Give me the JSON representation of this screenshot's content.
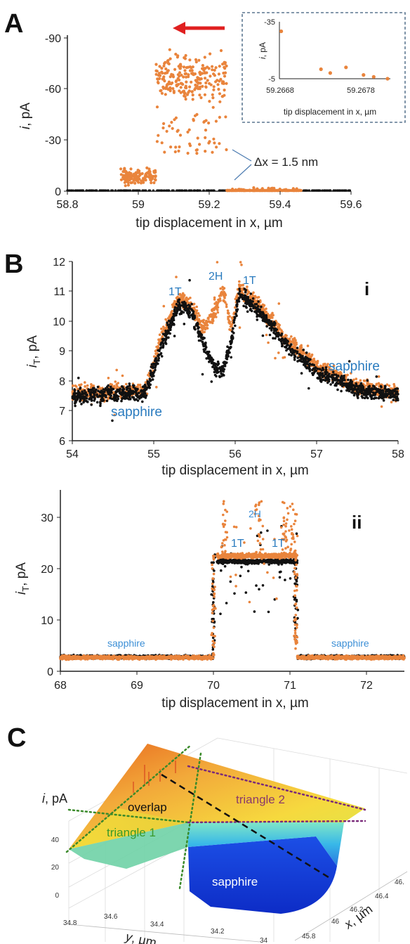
{
  "panel_labels": {
    "a": "A",
    "b": "B",
    "c": "C"
  },
  "colors": {
    "orange": "#e9843c",
    "black": "#111111",
    "blue": "#2a7bbf",
    "red": "#e02020",
    "inset_border": "#3a5a7a",
    "green_dot": "#3a8a2a",
    "purple_dot": "#7a2a7a"
  },
  "chart_data": [
    {
      "id": "A",
      "type": "scatter",
      "xlabel": "tip displacement in x, µm",
      "ylabel_italic": "i",
      "ylabel_rest": ", pA",
      "xlim": [
        58.8,
        59.6
      ],
      "ylim": [
        5,
        -90
      ],
      "xticks": [
        "58.8",
        "59",
        "59.2",
        "59.4",
        "59.6"
      ],
      "yticks": [
        "-90",
        "-60",
        "-30",
        "0"
      ],
      "annotation": "Δx = 1.5 nm",
      "arrow_direction": "left",
      "series": [
        {
          "color": "orange",
          "segments": [
            {
              "x": [
                58.95,
                59.05
              ],
              "level": -5,
              "noise": 4
            },
            {
              "x": [
                59.05,
                59.25
              ],
              "level": -65,
              "noise": 12
            },
            {
              "x": [
                59.25,
                59.46
              ],
              "level": 5,
              "noise": 2
            }
          ]
        },
        {
          "color": "black",
          "segments": [
            {
              "x": [
                58.8,
                59.6
              ],
              "level": 5,
              "noise": 0.5
            }
          ]
        }
      ]
    },
    {
      "id": "A-inset",
      "type": "scatter",
      "xlabel": "tip displacement in x, µm",
      "ylabel_italic": "i",
      "ylabel_rest": ", pA",
      "xticks": [
        "59.2668",
        "59.2678"
      ],
      "yticks": [
        "-35",
        "-5"
      ],
      "xlim": [
        59.2668,
        59.2683
      ],
      "ylim": [
        -5,
        -35
      ],
      "points": [
        [
          59.26682,
          -30
        ],
        [
          59.26725,
          -10
        ],
        [
          59.26735,
          -8
        ],
        [
          59.26752,
          -11
        ],
        [
          59.26771,
          -7
        ],
        [
          59.26782,
          -6
        ],
        [
          59.26797,
          -5
        ]
      ]
    },
    {
      "id": "B-i",
      "type": "scatter",
      "roman": "i",
      "xlabel": "tip displacement in x, µm",
      "ylabel_italic": "i",
      "ylabel_sub": "T",
      "ylabel_rest": ", pA",
      "xlim": [
        54,
        58
      ],
      "ylim": [
        6,
        12
      ],
      "xticks": [
        "54",
        "55",
        "56",
        "57",
        "58"
      ],
      "yticks": [
        "6",
        "7",
        "8",
        "9",
        "10",
        "11",
        "12"
      ],
      "annotations": [
        "1T",
        "2H",
        "1T",
        "sapphire",
        "sapphire"
      ],
      "series": [
        {
          "color": "orange",
          "profile": [
            [
              54.0,
              7.6
            ],
            [
              54.9,
              7.7
            ],
            [
              55.1,
              9.5
            ],
            [
              55.3,
              10.7
            ],
            [
              55.45,
              10.6
            ],
            [
              55.6,
              9.8
            ],
            [
              55.75,
              10.3
            ],
            [
              55.85,
              11.0
            ],
            [
              55.95,
              9.8
            ],
            [
              56.05,
              11.1
            ],
            [
              56.3,
              10.5
            ],
            [
              56.6,
              9.5
            ],
            [
              57.0,
              8.5
            ],
            [
              57.5,
              7.8
            ],
            [
              58.0,
              7.6
            ]
          ]
        },
        {
          "color": "black",
          "profile": [
            [
              54.0,
              7.5
            ],
            [
              54.9,
              7.6
            ],
            [
              55.1,
              9.2
            ],
            [
              55.3,
              10.5
            ],
            [
              55.45,
              10.4
            ],
            [
              55.6,
              9.3
            ],
            [
              55.75,
              8.4
            ],
            [
              55.85,
              8.4
            ],
            [
              55.95,
              9.3
            ],
            [
              56.05,
              10.9
            ],
            [
              56.3,
              10.3
            ],
            [
              56.6,
              9.3
            ],
            [
              57.0,
              8.3
            ],
            [
              57.5,
              7.7
            ],
            [
              58.0,
              7.5
            ]
          ]
        }
      ]
    },
    {
      "id": "B-ii",
      "type": "scatter",
      "roman": "ii",
      "xlabel": "tip displacement in x, µm",
      "ylabel_italic": "i",
      "ylabel_sub": "T",
      "ylabel_rest": ", pA",
      "xlim": [
        68,
        72.5
      ],
      "ylim": [
        0,
        33
      ],
      "xticks": [
        "68",
        "69",
        "70",
        "71",
        "72"
      ],
      "yticks": [
        "0",
        "10",
        "20",
        "30"
      ],
      "annotations": [
        "2H",
        "1T",
        "1T",
        "sapphire",
        "sapphire"
      ],
      "series": [
        {
          "color": "orange",
          "segments": [
            {
              "x": [
                68.0,
                70.0
              ],
              "level": 2.5
            },
            {
              "x": [
                70.05,
                71.1
              ],
              "level": 21
            },
            {
              "x": [
                71.1,
                72.5
              ],
              "level": 2.5
            }
          ]
        },
        {
          "color": "black",
          "segments": [
            {
              "x": [
                68.0,
                70.0
              ],
              "level": 2.6
            },
            {
              "x": [
                70.05,
                71.1
              ],
              "level": 20
            },
            {
              "x": [
                71.1,
                72.5
              ],
              "level": 2.6
            }
          ]
        }
      ]
    },
    {
      "id": "C",
      "type": "surface3d",
      "zlabel_italic": "i",
      "zlabel_rest": ", pA",
      "ylabel_italic": "y",
      "ylabel_rest": ", µm",
      "xlabel_italic": "x",
      "xlabel_rest": ", µm",
      "zticks": [
        "40",
        "20",
        "0"
      ],
      "yticks": [
        "34.8",
        "34.6",
        "34.4",
        "34.2",
        "34"
      ],
      "xticks": [
        "46.",
        "46.4",
        "46.2",
        "46",
        "45.8"
      ],
      "regions": [
        "overlap",
        "triangle 2",
        "triangle 1",
        "sapphire"
      ]
    }
  ]
}
